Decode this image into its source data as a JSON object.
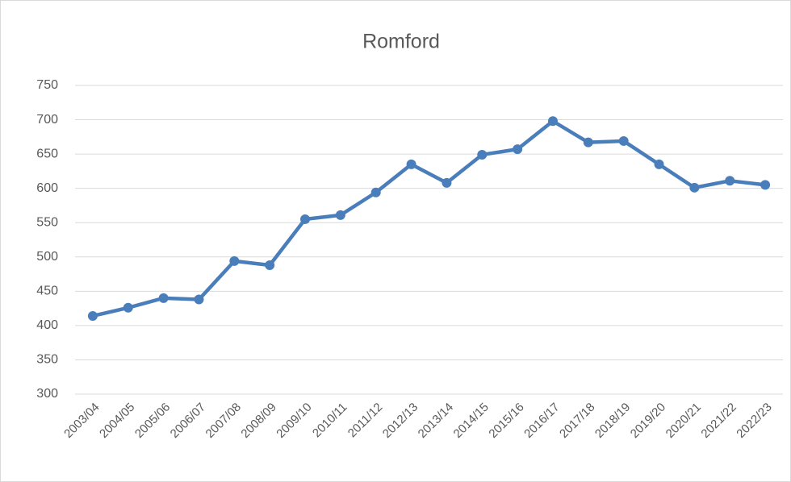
{
  "chart_data": {
    "type": "line",
    "title": "Romford",
    "categories": [
      "2003/04",
      "2004/05",
      "2005/06",
      "2006/07",
      "2007/08",
      "2008/09",
      "2009/10",
      "2010/11",
      "2011/12",
      "2012/13",
      "2013/14",
      "2014/15",
      "2015/16",
      "2016/17",
      "2017/18",
      "2018/19",
      "2019/20",
      "2020/21",
      "2021/22",
      "2022/23"
    ],
    "series": [
      {
        "name": "Romford",
        "color": "#4a7ebb",
        "values": [
          414,
          426,
          440,
          438,
          494,
          488,
          555,
          561,
          594,
          635,
          608,
          649,
          657,
          698,
          667,
          669,
          635,
          601,
          611,
          605
        ]
      }
    ],
    "ylim": [
      300,
      750
    ],
    "yticks": [
      300,
      350,
      400,
      450,
      500,
      550,
      600,
      650,
      700,
      750
    ],
    "grid": true,
    "legend": false
  }
}
